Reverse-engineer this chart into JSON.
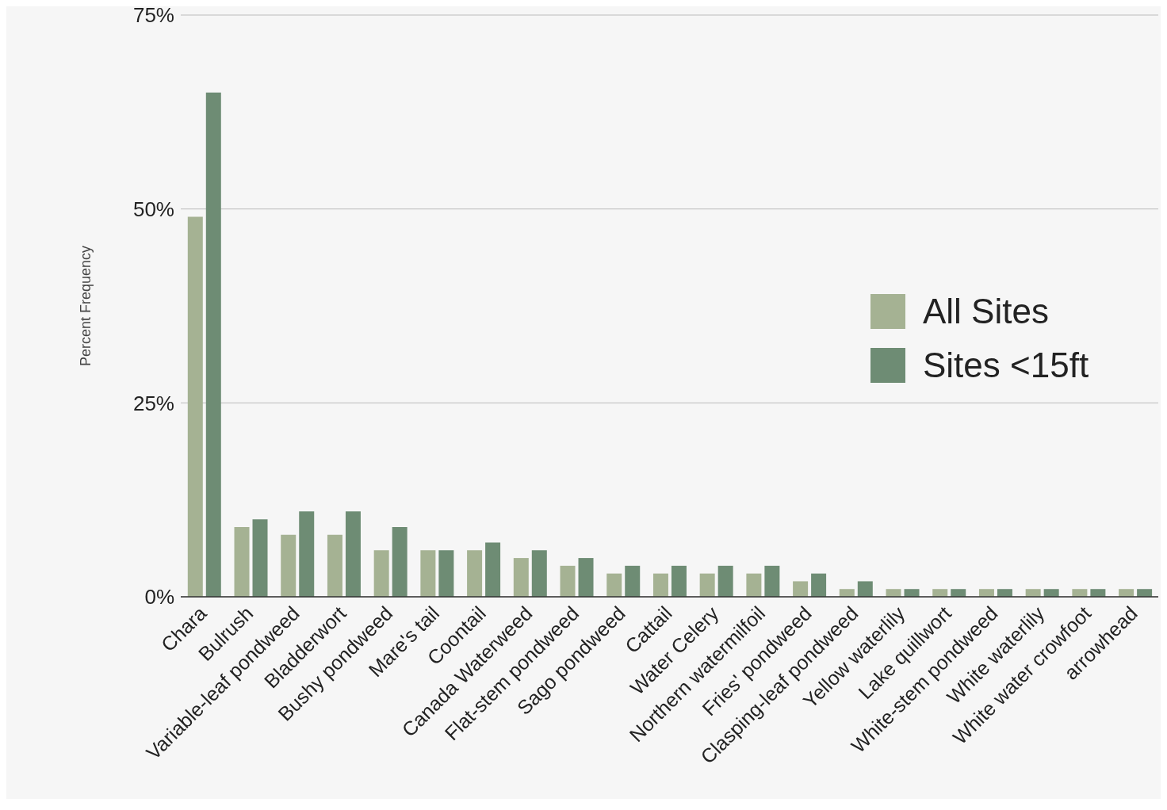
{
  "chart_data": {
    "type": "bar",
    "ylabel": "Percent Frequency",
    "categories": [
      "Chara",
      "Bulrush",
      "Variable-leaf pondweed",
      "Bladderwort",
      "Bushy pondweed",
      "Mare's tail",
      "Coontail",
      "Canada Waterweed",
      "Flat-stem pondweed",
      "Sago pondweed",
      "Cattail",
      "Water Celery",
      "Northern watermilfoil",
      "Fries' pondweed",
      "Clasping-leaf pondweed",
      "Yellow waterlily",
      "Lake quillwort",
      "White-stem pondweed",
      "White waterlily",
      "White water crowfoot",
      "arrowhead"
    ],
    "series": [
      {
        "name": "All Sites",
        "color": "#a5b293",
        "values": [
          49,
          9,
          8,
          8,
          6,
          6,
          6,
          5,
          4,
          3,
          3,
          3,
          3,
          2,
          1,
          1,
          1,
          1,
          1,
          1,
          1
        ]
      },
      {
        "name": "Sites <15ft",
        "color": "#6e8c74",
        "values": [
          65,
          10,
          11,
          11,
          9,
          6,
          7,
          6,
          5,
          4,
          4,
          4,
          4,
          3,
          2,
          1,
          1,
          1,
          1,
          1,
          1
        ]
      }
    ],
    "ylim": [
      0,
      75
    ],
    "yticks": [
      {
        "value": 0,
        "label": "0%"
      },
      {
        "value": 25,
        "label": "25%"
      },
      {
        "value": 50,
        "label": "50%"
      },
      {
        "value": 75,
        "label": "75%"
      }
    ],
    "grid": "y",
    "legend": "right"
  }
}
